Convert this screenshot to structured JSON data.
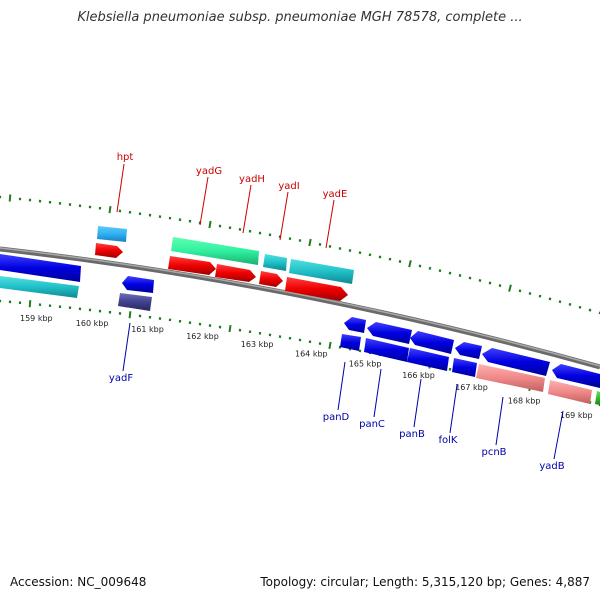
{
  "title": "Klebsiella pneumoniae subsp. pneumoniae MGH 78578, complete ...",
  "accession": "Accession: NC_009648",
  "summary": "Topology: circular; Length: 5,315,120 bp; Genes: 4,887",
  "colors": {
    "backbone": "#808080",
    "tick": "#1e7d1e",
    "top_label": "#cc0000",
    "bottom_label": "#0000aa"
  },
  "ruler_labels": [
    "159 kbp",
    "160 kbp",
    "161 kbp",
    "162 kbp",
    "163 kbp",
    "164 kbp",
    "165 kbp",
    "166 kbp",
    "167 kbp",
    "168 kbp",
    "169 kbp"
  ],
  "top_genes": [
    {
      "name": "hpt",
      "color": "#cc0000"
    },
    {
      "name": "yadG",
      "color": "#cc0000"
    },
    {
      "name": "yadH",
      "color": "#cc0000"
    },
    {
      "name": "yadI",
      "color": "#cc0000"
    },
    {
      "name": "yadE",
      "color": "#cc0000"
    }
  ],
  "bottom_genes": [
    {
      "name": "yadF",
      "color": "#0000aa"
    },
    {
      "name": "panD",
      "color": "#0000aa"
    },
    {
      "name": "panC",
      "color": "#0000aa"
    },
    {
      "name": "panB",
      "color": "#0000aa"
    },
    {
      "name": "folK",
      "color": "#0000aa"
    },
    {
      "name": "pcnB",
      "color": "#0000aa"
    },
    {
      "name": "yadB",
      "color": "#0000aa"
    }
  ]
}
